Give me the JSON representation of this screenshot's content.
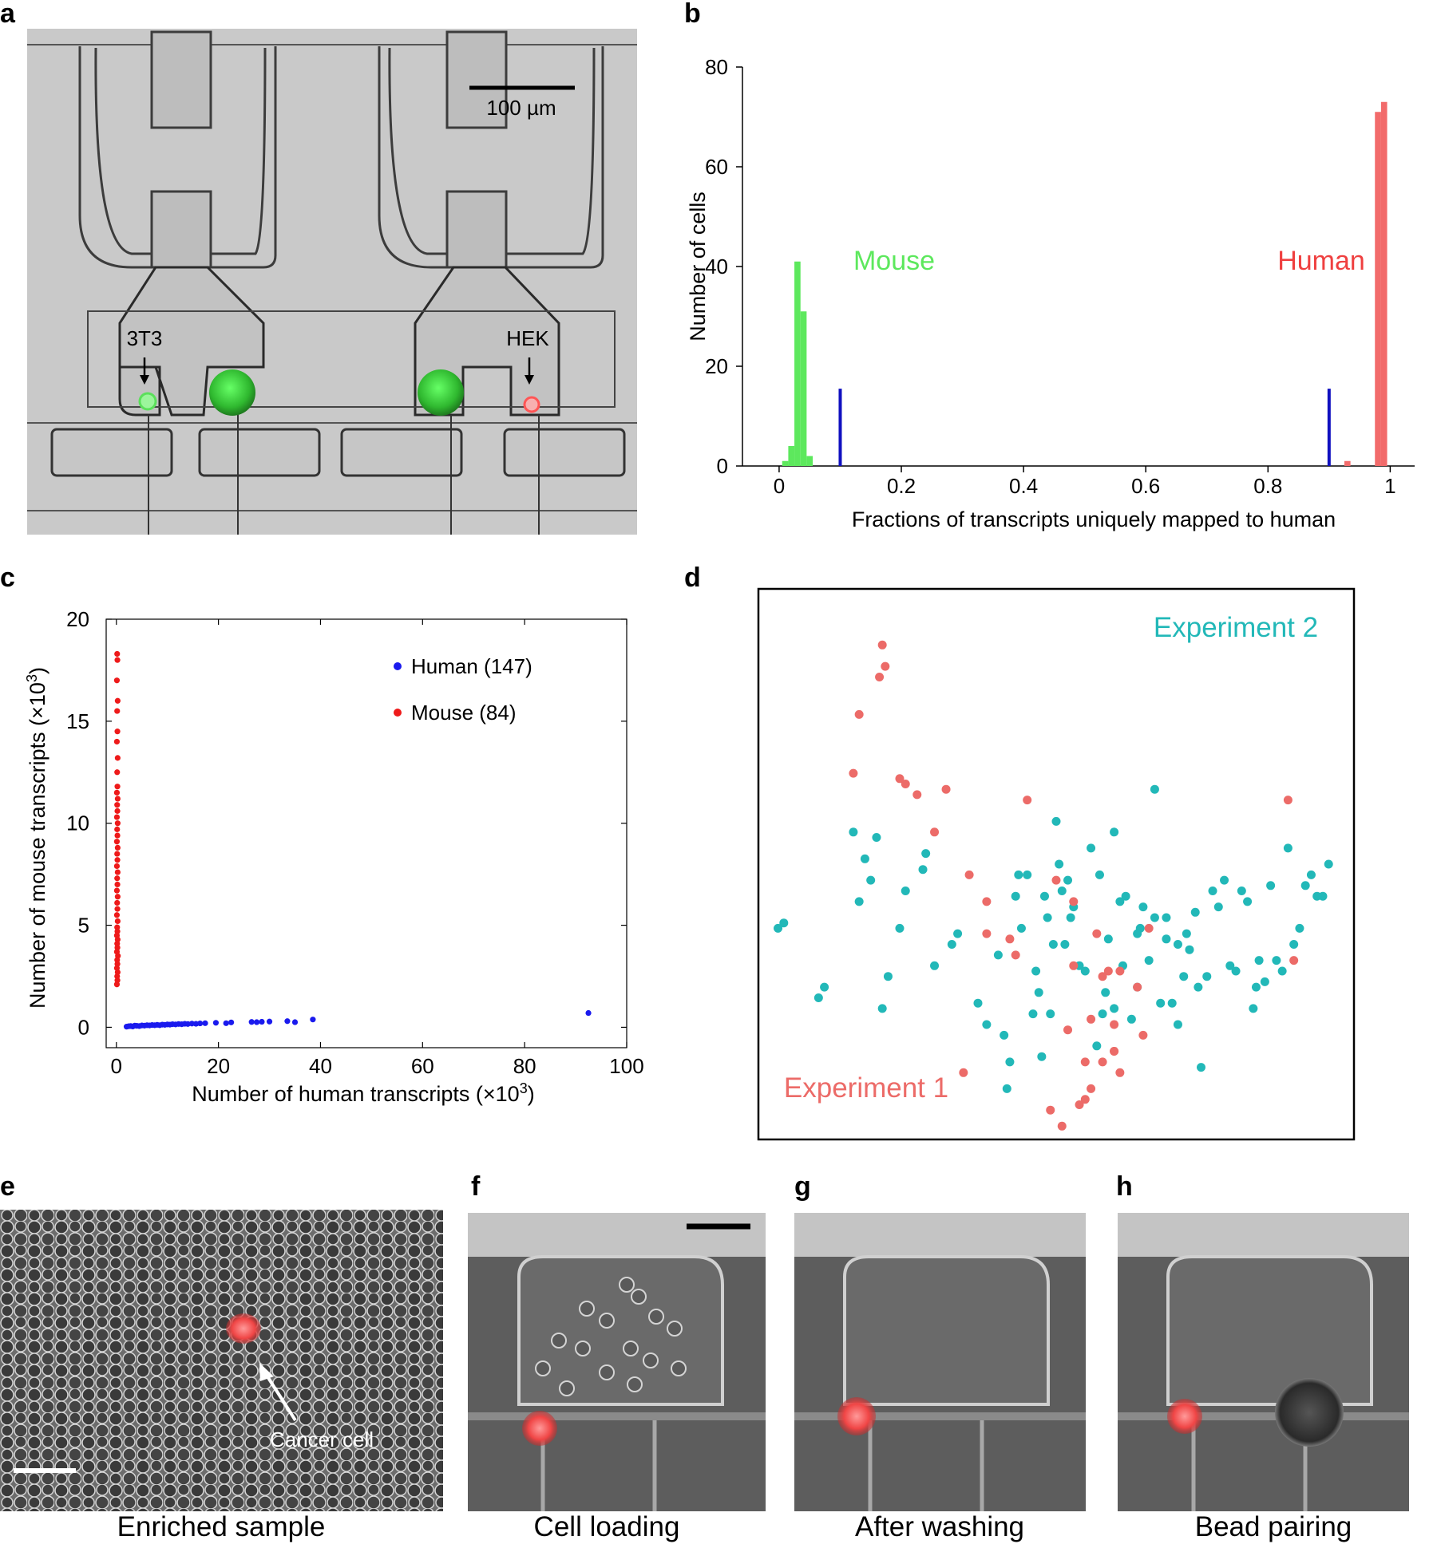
{
  "panel_labels": {
    "a": "a",
    "b": "b",
    "c": "c",
    "d": "d",
    "e": "e",
    "f": "f",
    "g": "g",
    "h": "h"
  },
  "panel_a": {
    "scale_bar_label": "100 µm",
    "label_3t3": "3T3",
    "label_hek": "HEK",
    "colors": {
      "mouse_cell": "#7dff7d",
      "human_cell": "#ff6e6e",
      "bead": "#3ccc3c",
      "background": "#c8c8c8"
    }
  },
  "panel_e": {
    "annotation": "Cancer cell",
    "caption": "Enriched sample"
  },
  "panel_f": {
    "caption": "Cell loading"
  },
  "panel_g": {
    "caption": "After washing"
  },
  "panel_h": {
    "caption": "Bead pairing"
  },
  "chart_data": [
    {
      "id": "b",
      "type": "bar",
      "xlabel": "Fractions of transcripts uniquely mapped to human",
      "ylabel": "Number of cells",
      "xlim": [
        -0.06,
        1.04
      ],
      "ylim": [
        0,
        80
      ],
      "xticks": [
        "0",
        "0.2",
        "0.4",
        "0.6",
        "0.8",
        "1"
      ],
      "xtick_values": [
        0,
        0.2,
        0.4,
        0.6,
        0.8,
        1
      ],
      "yticks": [
        "0",
        "20",
        "40",
        "60",
        "80"
      ],
      "ytick_values": [
        0,
        20,
        40,
        60,
        80
      ],
      "bin_width": 0.01,
      "series": [
        {
          "name": "Mouse",
          "color": "#5de85d",
          "x": [
            0.01,
            0.02,
            0.03,
            0.04,
            0.05
          ],
          "values": [
            1,
            4,
            41,
            31,
            2
          ]
        },
        {
          "name": "Human",
          "color": "#f26b6b",
          "x": [
            0.93,
            0.98,
            0.99
          ],
          "values": [
            1,
            71,
            73
          ]
        }
      ],
      "thresholds": {
        "color": "#1010c0",
        "x": [
          0.1,
          0.9
        ],
        "height": 15.5
      },
      "annotations": {
        "mouse": "Mouse",
        "human": "Human",
        "mouse_color": "#5de85d",
        "human_color": "#ef4040"
      }
    },
    {
      "id": "c",
      "type": "scatter",
      "xlabel": "Number of human transcripts (×10",
      "xlabel_sup": "3",
      "ylabel": "Number of mouse transcripts (×10",
      "ylabel_sup": "3",
      "xlim": [
        -2,
        100
      ],
      "ylim": [
        -1,
        20
      ],
      "xticks": [
        "0",
        "20",
        "40",
        "60",
        "80",
        "100"
      ],
      "xtick_values": [
        0,
        20,
        40,
        60,
        80,
        100
      ],
      "yticks": [
        "0",
        "5",
        "10",
        "15",
        "20"
      ],
      "ytick_values": [
        0,
        5,
        10,
        15,
        20
      ],
      "series": [
        {
          "name": "Human (147)",
          "color": "#1a1aee",
          "x": [
            2.0,
            2.4,
            2.8,
            3.2,
            3.6,
            4.0,
            4.5,
            5.0,
            5.5,
            6.0,
            6.5,
            7.0,
            7.5,
            8.0,
            8.5,
            9.0,
            9.5,
            10.0,
            10.5,
            11.0,
            11.6,
            12.2,
            12.8,
            13.4,
            14.0,
            14.8,
            15.6,
            16.4,
            17.4,
            19.5,
            21.5,
            22.5,
            26.5,
            27.5,
            28.5,
            30.0,
            33.5,
            35.0,
            38.5,
            92.5
          ],
          "y": [
            0.03,
            0.05,
            0.06,
            0.04,
            0.08,
            0.07,
            0.06,
            0.09,
            0.08,
            0.1,
            0.09,
            0.11,
            0.1,
            0.12,
            0.1,
            0.13,
            0.12,
            0.14,
            0.13,
            0.15,
            0.14,
            0.16,
            0.15,
            0.17,
            0.16,
            0.18,
            0.17,
            0.19,
            0.2,
            0.22,
            0.2,
            0.24,
            0.26,
            0.25,
            0.27,
            0.28,
            0.3,
            0.25,
            0.38,
            0.7
          ]
        },
        {
          "name": "Mouse (84)",
          "color": "#ee1a1a",
          "x": [
            0.1,
            0.2,
            0.15,
            0.25,
            0.1,
            0.2,
            0.15,
            0.3,
            0.1,
            0.2,
            0.15,
            0.25,
            0.1,
            0.2,
            0.15,
            0.25,
            0.1,
            0.2,
            0.15,
            0.25,
            0.1,
            0.2,
            0.15,
            0.25,
            0.1,
            0.2,
            0.15,
            0.25,
            0.1,
            0.2,
            0.15,
            0.25,
            0.1,
            0.2,
            0.15,
            0.25,
            0.1,
            0.2,
            0.15,
            0.25,
            0.1,
            0.2,
            0.15,
            0.25,
            0.1,
            0.2,
            0.15
          ],
          "y": [
            2.1,
            2.3,
            2.5,
            2.7,
            2.9,
            3.1,
            3.3,
            3.5,
            3.7,
            3.9,
            4.1,
            4.3,
            4.5,
            4.7,
            4.9,
            5.2,
            5.5,
            5.8,
            6.1,
            6.4,
            6.7,
            7.0,
            7.3,
            7.6,
            7.9,
            8.2,
            8.5,
            8.8,
            9.1,
            9.4,
            9.7,
            10.0,
            10.3,
            10.6,
            10.9,
            11.2,
            11.5,
            11.8,
            12.5,
            13.2,
            14.0,
            14.5,
            15.5,
            16.0,
            17.0,
            18.0,
            18.3
          ]
        }
      ],
      "legend": {
        "position": "top-right"
      }
    },
    {
      "id": "d",
      "type": "scatter",
      "axes": "hidden",
      "xlim": [
        0,
        100
      ],
      "ylim": [
        0,
        100
      ],
      "series": [
        {
          "name": "Experiment 2",
          "color": "#22b8b8",
          "x": [
            2,
            3,
            9,
            10,
            15,
            19,
            27,
            27.5,
            29,
            33,
            36.5,
            38,
            40,
            41,
            41.5,
            42,
            43,
            43.5,
            44,
            46,
            46.5,
            47,
            47.5,
            48,
            48.5,
            49,
            49.5,
            50,
            50.5,
            51,
            51.5,
            52,
            52.5,
            53,
            54,
            55,
            56,
            57,
            57.5,
            58,
            58.5,
            59,
            60,
            61,
            61.5,
            62,
            63,
            64,
            64.5,
            65,
            66,
            67,
            68,
            69,
            70,
            71,
            72,
            72.5,
            73,
            74,
            74.5,
            75,
            76,
            77,
            78,
            79,
            80,
            81,
            82,
            83,
            84,
            84.5,
            85,
            86,
            87,
            88,
            89,
            90,
            91,
            92,
            93,
            94,
            95,
            96,
            97,
            16,
            17,
            18,
            20,
            21,
            23,
            24,
            32,
            45,
            60,
            64,
            67,
            69,
            71
          ],
          "y": [
            38,
            39,
            25,
            27,
            56,
            55,
            49,
            52,
            31,
            37,
            24,
            20,
            33,
            18,
            8,
            13,
            44,
            48,
            38,
            22,
            30,
            26,
            14,
            44,
            40,
            22,
            35,
            58,
            50,
            45,
            35,
            47,
            40,
            42,
            31,
            30,
            53,
            16,
            48,
            22,
            26,
            36,
            23,
            43,
            31,
            44,
            21,
            27,
            38,
            42,
            32,
            40,
            24,
            36,
            24,
            20,
            29,
            37,
            34,
            41,
            27,
            12,
            29,
            45,
            42,
            47,
            31,
            30,
            45,
            43,
            23,
            27,
            32,
            28,
            46,
            32,
            30,
            53,
            35,
            38,
            46,
            48,
            44,
            44,
            50,
            43,
            51,
            47,
            23,
            29,
            38,
            45,
            35,
            48,
            56,
            37,
            64,
            40,
            35
          ],
          "label": "Experiment 2"
        },
        {
          "name": "Experiment 1",
          "color": "#ec6b68",
          "x": [
            20,
            20.5,
            19.5,
            16,
            15,
            23,
            24,
            26,
            31,
            29,
            35,
            38,
            45,
            42,
            43,
            53,
            57,
            59,
            61,
            64,
            65,
            60,
            58,
            56,
            55,
            54,
            56,
            60,
            61,
            51,
            49,
            55,
            58,
            60,
            66,
            90,
            91,
            34,
            38,
            50,
            52,
            53
          ],
          "y": [
            91,
            87,
            85,
            78,
            67,
            66,
            65,
            63,
            64,
            56,
            48,
            37,
            62,
            36,
            33,
            43,
            37,
            30,
            30,
            27,
            18,
            15,
            13,
            8,
            6,
            5,
            21,
            20,
            11,
            1,
            4,
            13,
            29,
            15,
            38,
            62,
            32,
            11,
            43,
            47,
            19,
            31
          ],
          "label": "Experiment 1"
        }
      ],
      "labels": {
        "exp2": "Experiment 2",
        "exp1": "Experiment 1"
      }
    }
  ]
}
